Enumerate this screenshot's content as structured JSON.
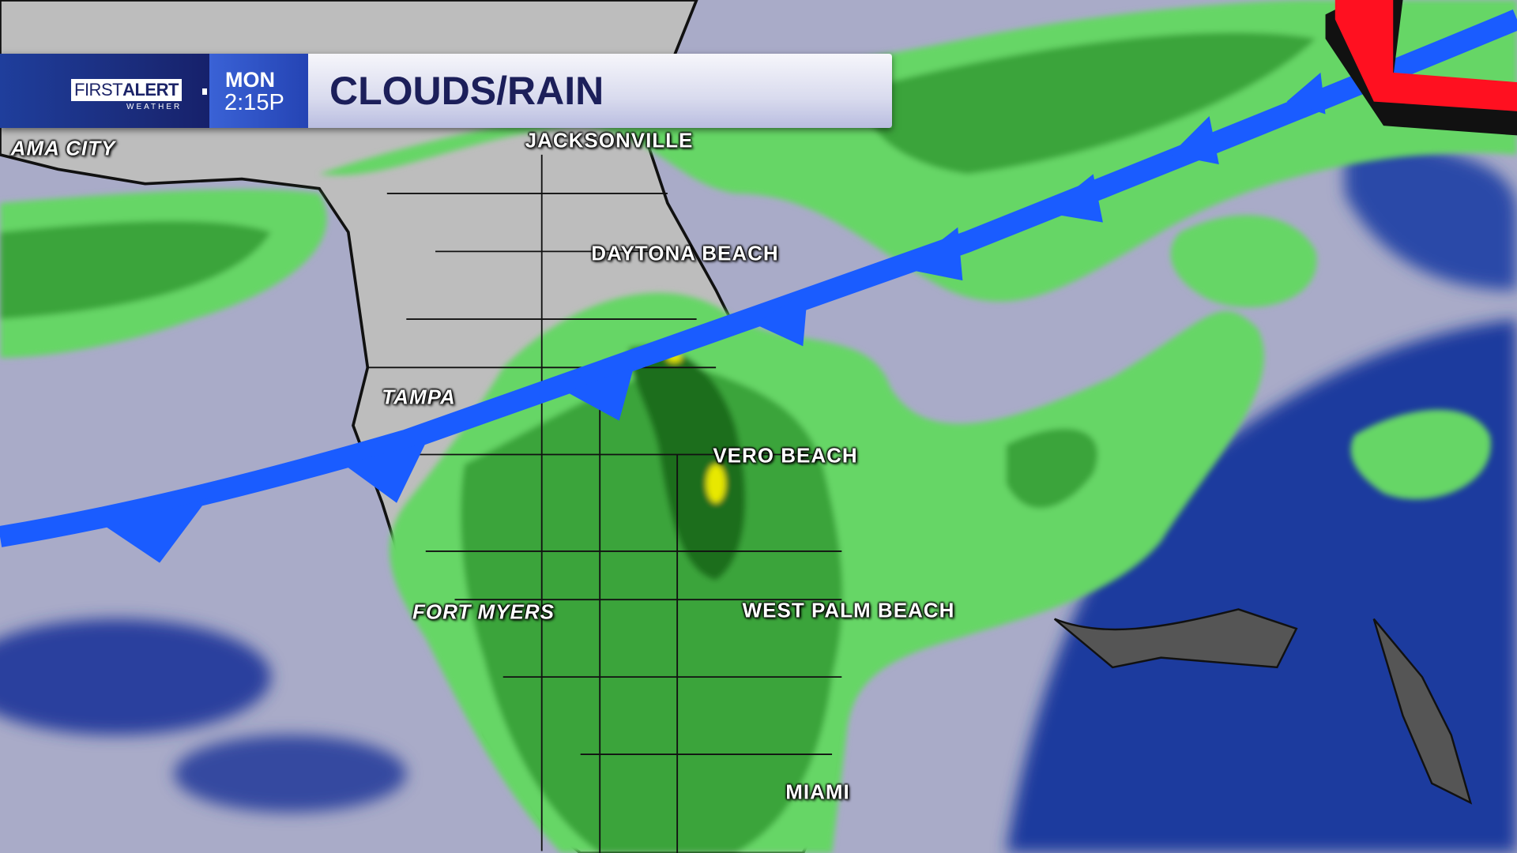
{
  "header": {
    "logo_first": "FIRST",
    "logo_alert": "ALERT",
    "logo_sub": "WEATHER",
    "day": "MON",
    "time": "2:15P",
    "title": "CLOUDS/RAIN"
  },
  "cities": {
    "panama_city": "AMA CITY",
    "jacksonville": "JACKSONVILLE",
    "daytona_beach": "DAYTONA BEACH",
    "tampa": "TAMPA",
    "vero_beach": "VERO BEACH",
    "fort_myers": "FORT MYERS",
    "west_palm_beach": "WEST PALM BEACH",
    "miami": "MIAMI"
  },
  "colors": {
    "cold_front": "#1a5cff",
    "low_pressure": "#ff1020",
    "rain_light": "#66d666",
    "rain_moderate": "#3aa43a",
    "rain_heavy": "#1e6e1e",
    "rain_intense": "#e8e800",
    "land": "#bdbdbd",
    "clouds": "#a9abc8",
    "clear_ocean": "#1f3a9e"
  }
}
